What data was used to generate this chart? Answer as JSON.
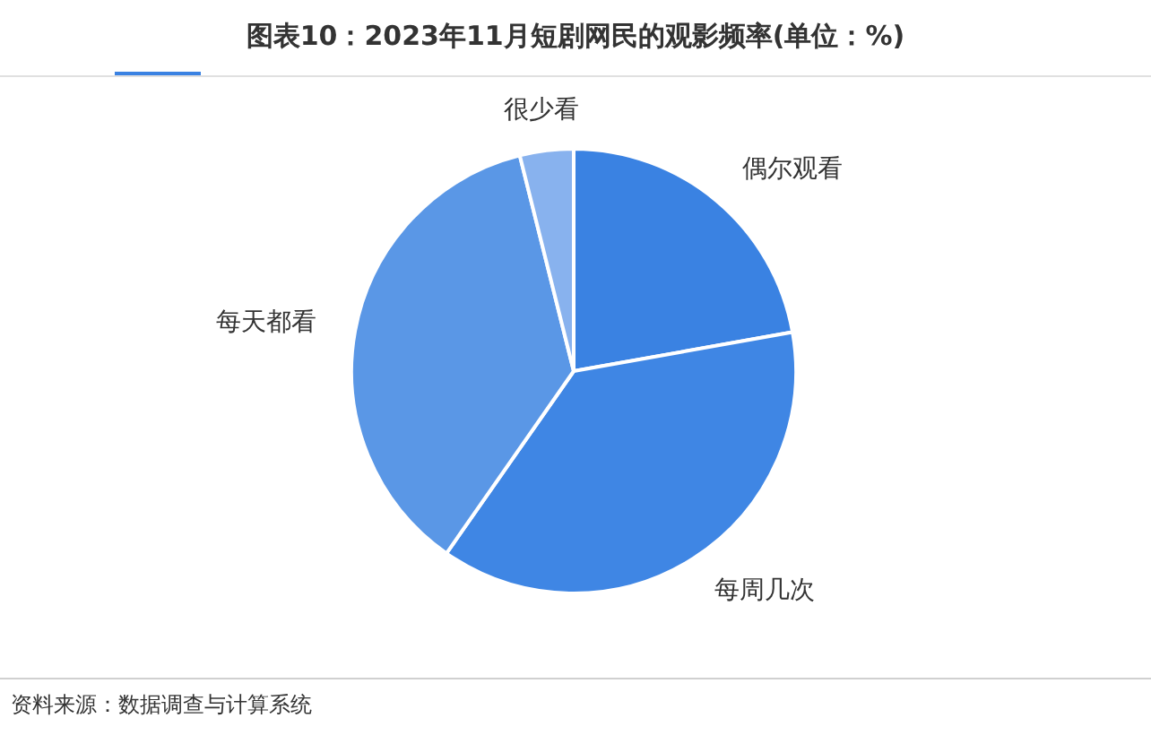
{
  "chart_data": {
    "type": "pie",
    "title": "图表10：2023年11月短剧网民的观影频率(单位：%)",
    "categories": [
      "偶尔观看",
      "每周几次",
      "每天都看",
      "很少看"
    ],
    "values": [
      22.2,
      37.5,
      36.4,
      3.9
    ],
    "colors": [
      "#3a82e2",
      "#3f86e4",
      "#5a97e6",
      "#88b2ee"
    ],
    "legend": false,
    "annotations": [
      "资料来源：数据调查与计算系统"
    ]
  }
}
